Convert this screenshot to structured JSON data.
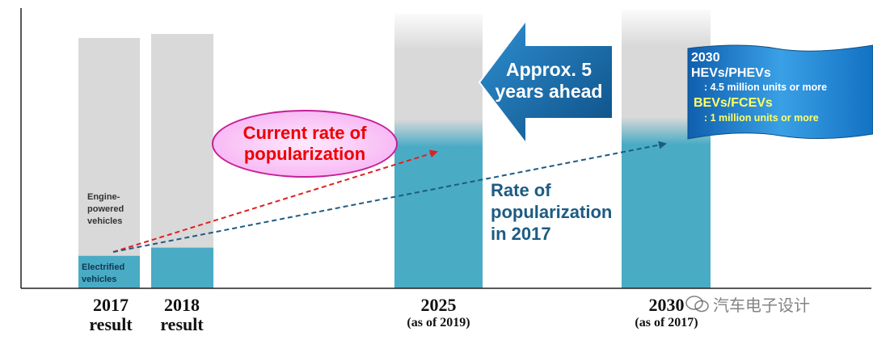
{
  "chart_data": {
    "type": "bar",
    "stacked": true,
    "categories": [
      {
        "main": "2017",
        "sub": "result"
      },
      {
        "main": "2018",
        "sub": "result"
      },
      {
        "main": "2025",
        "sub": "(as of 2019)"
      },
      {
        "main": "2030",
        "sub": "(as of 2017)"
      }
    ],
    "series": [
      {
        "name": "Electrified vehicles",
        "color": "#4aabc5",
        "values": [
          0.13,
          0.16,
          0.58,
          0.58
        ]
      },
      {
        "name": "Engine-powered vehicles",
        "color": "#d9d9d9",
        "values": [
          0.87,
          0.84,
          0.42,
          0.42
        ]
      }
    ],
    "segment_labels": {
      "engine": "Engine-\npowered\nvehicles",
      "electrified": "Electrified\nvehicles"
    },
    "annotations": {
      "current_rate": [
        "Current rate of",
        "popularization"
      ],
      "rate_2017": [
        "Rate of",
        "popularization",
        "in 2017"
      ],
      "ahead": [
        "Approx. 5",
        "years ahead"
      ],
      "target": {
        "year": "2030",
        "hev": "HEVs/PHEVs",
        "hev_detail": ": 4.5 million units or more",
        "bev": "BEVs/FCEVs",
        "bev_detail": ": 1 million units or more"
      }
    },
    "colors": {
      "electrified": "#4aabc5",
      "engine": "#d9d9d9",
      "red_arrow": "#e02020",
      "blue_arrow": "#1d5b84",
      "big_arrow": "#1b6ea8",
      "flag": "#1a78c0"
    }
  },
  "watermark": "汽车电子设计"
}
